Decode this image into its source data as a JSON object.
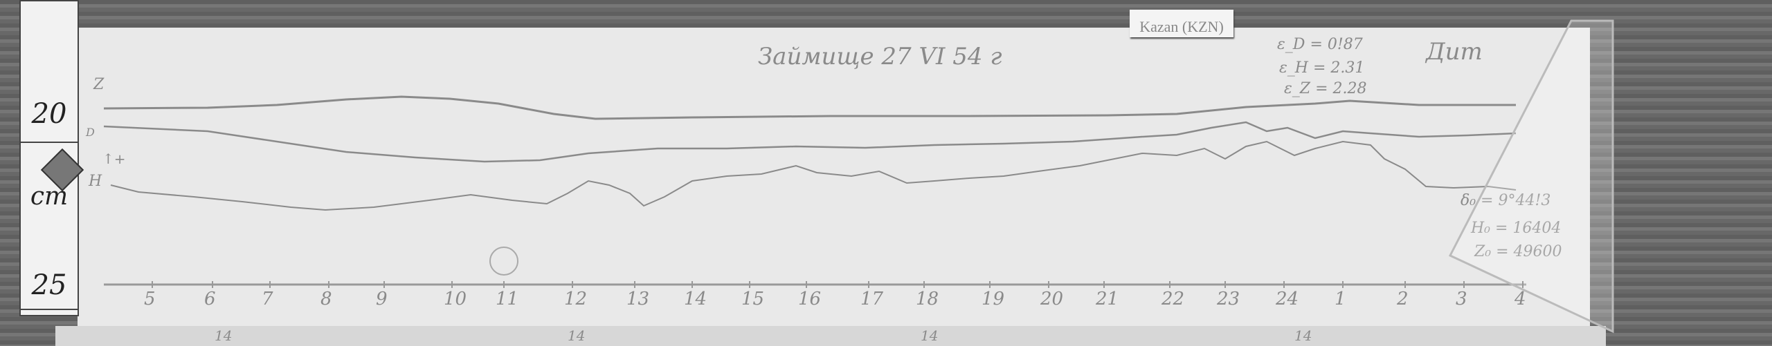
{
  "ruler": {
    "top_label": "20",
    "unit": "cm",
    "bottom_label": "25"
  },
  "station_label": "Kazan (KZN)",
  "title_handwritten": "Займище 27 VI 54 г",
  "scale_values": [
    "ε_D = 0!87",
    "ε_H = 2.31",
    "ε_Z = 2.28"
  ],
  "time_system": "Дит",
  "baselines": [
    "δ₀ = 9°44!3",
    "H₀ = 16404",
    "Z₀ = 49600"
  ],
  "trace_labels": {
    "z": "Z",
    "d": "D",
    "h": "H",
    "arrow": "↑+"
  },
  "hour_ticks": [
    "5",
    "6",
    "7",
    "8",
    "9",
    "10",
    "11",
    "12",
    "13",
    "14",
    "15",
    "16",
    "17",
    "18",
    "19",
    "20",
    "21",
    "22",
    "23",
    "24",
    "1",
    "2",
    "3",
    "4"
  ],
  "bottom_marks": [
    "14",
    "14",
    "14",
    "14"
  ],
  "colors": {
    "paper": "#e9e9e9",
    "trace": "#8a8a8a",
    "background": "#6e6e6e"
  }
}
